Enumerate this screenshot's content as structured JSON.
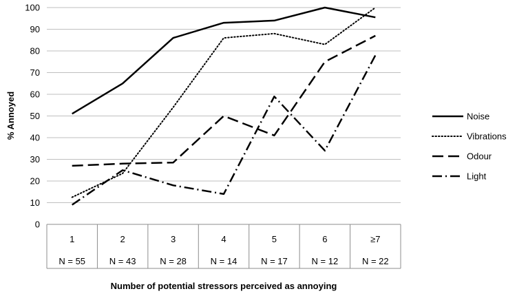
{
  "chart_data": {
    "type": "line",
    "categories": [
      "1",
      "2",
      "3",
      "4",
      "5",
      "6",
      "≥7"
    ],
    "category_counts": [
      "N = 55",
      "N = 43",
      "N = 28",
      "N = 14",
      "N = 17",
      "N = 12",
      "N = 22"
    ],
    "ylabel": "% Annoyed",
    "xlabel": "Number of potential stressors perceived as annoying",
    "ylim": [
      0,
      100
    ],
    "yticks": [
      0,
      10,
      20,
      30,
      40,
      50,
      60,
      70,
      80,
      90,
      100
    ],
    "grid": "horizontal",
    "legend_position": "right",
    "series": [
      {
        "name": "Noise",
        "style": "solid",
        "values": [
          51,
          65,
          86,
          93,
          94,
          100,
          95.5
        ]
      },
      {
        "name": "Vibrations",
        "style": "dotted",
        "values": [
          12.5,
          23.5,
          54,
          86,
          88,
          83,
          100
        ]
      },
      {
        "name": "Odour",
        "style": "dashed",
        "values": [
          27,
          28,
          28.5,
          50,
          41,
          75,
          87
        ]
      },
      {
        "name": "Light",
        "style": "dash-dot",
        "values": [
          9,
          25,
          18,
          14,
          59,
          34,
          78
        ]
      }
    ],
    "colors": {
      "line": "#000000",
      "grid": "#bfbfbf",
      "axis": "#8c8c8c"
    }
  }
}
